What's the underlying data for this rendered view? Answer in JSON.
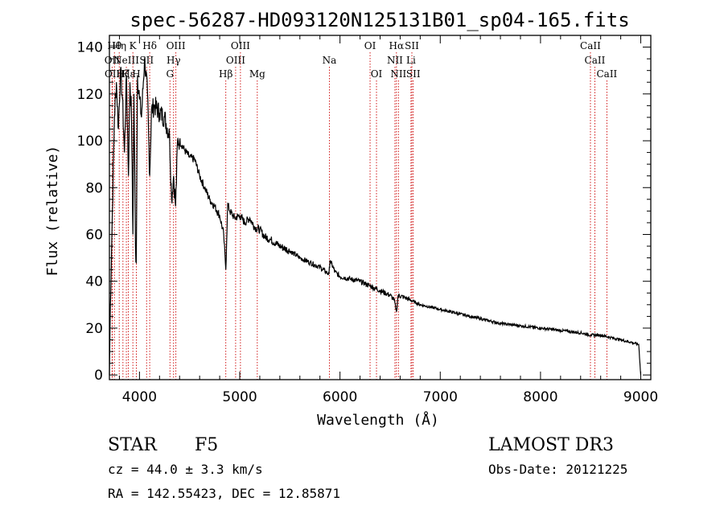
{
  "chart_data": {
    "type": "line",
    "title": "spec-56287-HD093120N125131B01_sp04-165.fits",
    "xlabel": "Wavelength (Å)",
    "ylabel": "Flux (relative)",
    "xlim": [
      3700,
      9100
    ],
    "ylim": [
      -2,
      145
    ],
    "xticks": [
      4000,
      5000,
      6000,
      7000,
      8000,
      9000
    ],
    "yticks": [
      0,
      20,
      40,
      60,
      80,
      100,
      120,
      140
    ],
    "series": [
      {
        "name": "flux",
        "x": [
          3700,
          3710,
          3730,
          3750,
          3770,
          3790,
          3810,
          3830,
          3850,
          3870,
          3890,
          3905,
          3920,
          3934,
          3945,
          3960,
          3968,
          3980,
          4000,
          4020,
          4050,
          4080,
          4102,
          4120,
          4150,
          4200,
          4250,
          4300,
          4320,
          4340,
          4360,
          4380,
          4400,
          4450,
          4500,
          4550,
          4600,
          4650,
          4700,
          4750,
          4800,
          4840,
          4861,
          4880,
          4900,
          4950,
          5000,
          5050,
          5100,
          5150,
          5200,
          5250,
          5300,
          5400,
          5500,
          5600,
          5700,
          5800,
          5890,
          5900,
          5950,
          6000,
          6100,
          6200,
          6300,
          6400,
          6500,
          6540,
          6563,
          6580,
          6650,
          6700,
          6800,
          7000,
          7200,
          7400,
          7600,
          7800,
          8000,
          8200,
          8400,
          8500,
          8600,
          8700,
          8800,
          8900,
          8980,
          9000
        ],
        "y": [
          0,
          30,
          70,
          110,
          125,
          105,
          130,
          118,
          95,
          128,
          85,
          125,
          112,
          60,
          120,
          55,
          48,
          128,
          118,
          110,
          135,
          120,
          85,
          113,
          115,
          112,
          110,
          102,
          75,
          85,
          72,
          100,
          100,
          96,
          93,
          92,
          85,
          80,
          75,
          72,
          68,
          60,
          45,
          73,
          70,
          67,
          68,
          65,
          67,
          63,
          62,
          59,
          58,
          55,
          53,
          50,
          48,
          46,
          43,
          49,
          44,
          42,
          41,
          40,
          38,
          36,
          34,
          32,
          27,
          34,
          33,
          32,
          30,
          28,
          26,
          24,
          22,
          21,
          20,
          19,
          18,
          17,
          17,
          16,
          15,
          14,
          13,
          0
        ]
      }
    ],
    "lines": [
      {
        "wl": 3727,
        "label": "OII",
        "row": 1
      },
      {
        "wl": 3729,
        "label": "OII",
        "row": 2
      },
      {
        "wl": 3750,
        "label": "Hθ",
        "row": 0
      },
      {
        "wl": 3798,
        "label": "Hη",
        "row": 0
      },
      {
        "wl": 3835,
        "label": "Hζ",
        "row": 2
      },
      {
        "wl": 3869,
        "label": "NeIII",
        "row": 1
      },
      {
        "wl": 3889,
        "label": "Hε",
        "row": 2
      },
      {
        "wl": 3934,
        "label": "K",
        "row": 0
      },
      {
        "wl": 3969,
        "label": "H",
        "row": 2
      },
      {
        "wl": 4071,
        "label": "SII",
        "row": 1
      },
      {
        "wl": 4102,
        "label": "Hδ",
        "row": 0
      },
      {
        "wl": 4304,
        "label": "G",
        "row": 2
      },
      {
        "wl": 4340,
        "label": "Hγ",
        "row": 1
      },
      {
        "wl": 4363,
        "label": "OIII",
        "row": 0
      },
      {
        "wl": 4861,
        "label": "Hβ",
        "row": 2
      },
      {
        "wl": 4959,
        "label": "OIII",
        "row": 1
      },
      {
        "wl": 5007,
        "label": "OIII",
        "row": 0
      },
      {
        "wl": 5175,
        "label": "Mg",
        "row": 2
      },
      {
        "wl": 5894,
        "label": "Na",
        "row": 1
      },
      {
        "wl": 6300,
        "label": "OI",
        "row": 0
      },
      {
        "wl": 6364,
        "label": "OI",
        "row": 2
      },
      {
        "wl": 6548,
        "label": "NII",
        "row": 1
      },
      {
        "wl": 6563,
        "label": "Hα",
        "row": 0
      },
      {
        "wl": 6583,
        "label": "NII",
        "row": 2
      },
      {
        "wl": 6708,
        "label": "Li",
        "row": 1
      },
      {
        "wl": 6717,
        "label": "SII",
        "row": 0
      },
      {
        "wl": 6731,
        "label": "SII",
        "row": 2
      },
      {
        "wl": 8498,
        "label": "CaII",
        "row": 0
      },
      {
        "wl": 8542,
        "label": "CaII",
        "row": 1
      },
      {
        "wl": 8662,
        "label": "CaII",
        "row": 2
      }
    ]
  },
  "info": {
    "class": "STAR",
    "subclass": "F5",
    "survey": "LAMOST DR3",
    "redshift": "cz = 44.0 ± 3.3 km/s",
    "obsdate": "Obs-Date: 20121225",
    "coords": "RA = 142.55423, DEC =  12.85871"
  },
  "colors": {
    "spectrum": "#000000",
    "line_marker": "#cc0000",
    "axes": "#000000"
  }
}
